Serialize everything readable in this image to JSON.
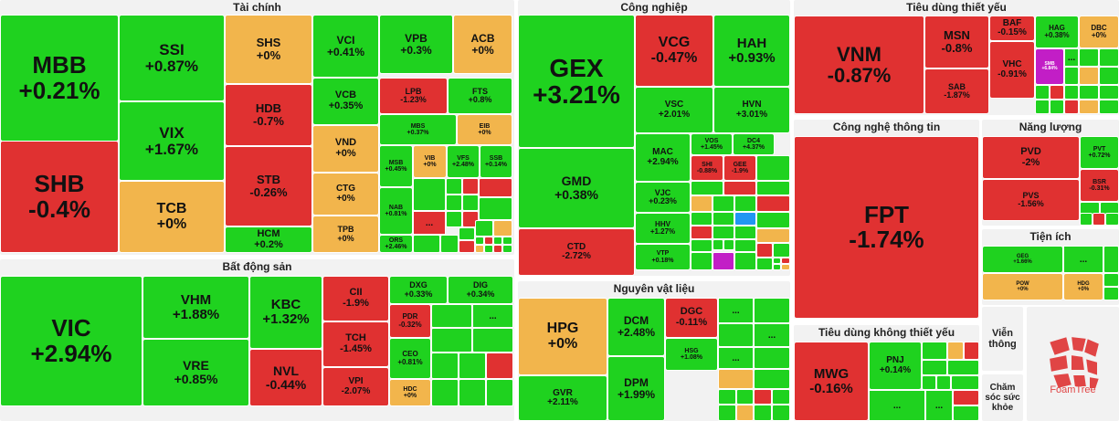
{
  "colors": {
    "up": "#1fd21f",
    "down": "#e03131",
    "flat": "#f2b54c",
    "purple": "#c21ec6",
    "blue": "#2196f3",
    "bg": "#f2f2f2"
  },
  "chart_data": {
    "type": "treemap",
    "sectors": [
      {
        "name": "Tài chính",
        "stocks": [
          {
            "s": "MBB",
            "v": "+0.21%",
            "d": 0.21
          },
          {
            "s": "SHB",
            "v": "-0.4%",
            "d": -0.4
          },
          {
            "s": "SSI",
            "v": "+0.87%",
            "d": 0.87
          },
          {
            "s": "VIX",
            "v": "+1.67%",
            "d": 1.67
          },
          {
            "s": "TCB",
            "v": "+0%",
            "d": 0
          },
          {
            "s": "SHS",
            "v": "+0%",
            "d": 0
          },
          {
            "s": "HDB",
            "v": "-0.7%",
            "d": -0.7
          },
          {
            "s": "STB",
            "v": "-0.26%",
            "d": -0.26
          },
          {
            "s": "HCM",
            "v": "+0.2%",
            "d": 0.2
          },
          {
            "s": "VCI",
            "v": "+0.41%",
            "d": 0.41
          },
          {
            "s": "VPB",
            "v": "+0.3%",
            "d": 0.3
          },
          {
            "s": "ACB",
            "v": "+0%",
            "d": 0
          },
          {
            "s": "VCB",
            "v": "+0.35%",
            "d": 0.35
          },
          {
            "s": "LPB",
            "v": "-1.23%",
            "d": -1.23
          },
          {
            "s": "FTS",
            "v": "+0.8%",
            "d": 0.8
          },
          {
            "s": "VND",
            "v": "+0%",
            "d": 0
          },
          {
            "s": "MBS",
            "v": "+0.37%",
            "d": 0.37
          },
          {
            "s": "EIB",
            "v": "+0%",
            "d": 0
          },
          {
            "s": "CTG",
            "v": "+0%",
            "d": 0
          },
          {
            "s": "TPB",
            "v": "+0%",
            "d": 0
          },
          {
            "s": "MSB",
            "v": "+0.45%",
            "d": 0.45
          },
          {
            "s": "VIB",
            "v": "+0%",
            "d": 0
          },
          {
            "s": "VFS",
            "v": "+2.48%",
            "d": 2.48
          },
          {
            "s": "SSB",
            "v": "+0.14%",
            "d": 0.14
          },
          {
            "s": "NAB",
            "v": "+0.81%",
            "d": 0.81
          },
          {
            "s": "ORS",
            "v": "+2.46%",
            "d": 2.46
          }
        ]
      },
      {
        "name": "Bất động sản",
        "stocks": [
          {
            "s": "VIC",
            "v": "+2.94%",
            "d": 2.94
          },
          {
            "s": "VHM",
            "v": "+1.88%",
            "d": 1.88
          },
          {
            "s": "VRE",
            "v": "+0.85%",
            "d": 0.85
          },
          {
            "s": "KBC",
            "v": "+1.32%",
            "d": 1.32
          },
          {
            "s": "NVL",
            "v": "-0.44%",
            "d": -0.44
          },
          {
            "s": "CII",
            "v": "-1.9%",
            "d": -1.9
          },
          {
            "s": "TCH",
            "v": "-1.45%",
            "d": -1.45
          },
          {
            "s": "VPI",
            "v": "-2.07%",
            "d": -2.07
          },
          {
            "s": "DXG",
            "v": "+0.33%",
            "d": 0.33
          },
          {
            "s": "DIG",
            "v": "+0.34%",
            "d": 0.34
          },
          {
            "s": "PDR",
            "v": "-0.32%",
            "d": -0.32
          },
          {
            "s": "CEO",
            "v": "+0.81%",
            "d": 0.81
          },
          {
            "s": "HDC",
            "v": "+0%",
            "d": 0
          }
        ]
      },
      {
        "name": "Công nghiệp",
        "stocks": [
          {
            "s": "GEX",
            "v": "+3.21%",
            "d": 3.21
          },
          {
            "s": "GMD",
            "v": "+0.38%",
            "d": 0.38
          },
          {
            "s": "CTD",
            "v": "-2.72%",
            "d": -2.72
          },
          {
            "s": "VCG",
            "v": "-0.47%",
            "d": -0.47
          },
          {
            "s": "HAH",
            "v": "+0.93%",
            "d": 0.93
          },
          {
            "s": "VSC",
            "v": "+2.01%",
            "d": 2.01
          },
          {
            "s": "HVN",
            "v": "+3.01%",
            "d": 3.01
          },
          {
            "s": "MAC",
            "v": "+2.94%",
            "d": 2.94
          },
          {
            "s": "VOS",
            "v": "+1.45%",
            "d": 1.45
          },
          {
            "s": "DC4",
            "v": "+4.37%",
            "d": 4.37
          },
          {
            "s": "SHI",
            "v": "-0.88%",
            "d": -0.88
          },
          {
            "s": "GEE",
            "v": "-1.9%",
            "d": -1.9
          },
          {
            "s": "VJC",
            "v": "+0.23%",
            "d": 0.23
          },
          {
            "s": "HHV",
            "v": "+1.27%",
            "d": 1.27
          },
          {
            "s": "VTP",
            "v": "+0.18%",
            "d": 0.18
          }
        ]
      },
      {
        "name": "Nguyên vật liệu",
        "stocks": [
          {
            "s": "HPG",
            "v": "+0%",
            "d": 0
          },
          {
            "s": "GVR",
            "v": "+2.11%",
            "d": 2.11
          },
          {
            "s": "DCM",
            "v": "+2.48%",
            "d": 2.48
          },
          {
            "s": "DPM",
            "v": "+1.99%",
            "d": 1.99
          },
          {
            "s": "DGC",
            "v": "-0.11%",
            "d": -0.11
          },
          {
            "s": "HSG",
            "v": "+1.08%",
            "d": 1.08
          }
        ]
      },
      {
        "name": "Tiêu dùng thiết yếu",
        "stocks": [
          {
            "s": "VNM",
            "v": "-0.87%",
            "d": -0.87
          },
          {
            "s": "MSN",
            "v": "-0.8%",
            "d": -0.8
          },
          {
            "s": "SAB",
            "v": "-1.87%",
            "d": -1.87
          },
          {
            "s": "BAF",
            "v": "-0.15%",
            "d": -0.15
          },
          {
            "s": "VHC",
            "v": "-0.91%",
            "d": -0.91
          },
          {
            "s": "HAG",
            "v": "+0.38%",
            "d": 0.38
          },
          {
            "s": "DBC",
            "v": "+0%",
            "d": 0
          },
          {
            "s": "SMB",
            "v": "+6.84%",
            "d": 6.84
          }
        ]
      },
      {
        "name": "Công nghệ thông tin",
        "stocks": [
          {
            "s": "FPT",
            "v": "-1.74%",
            "d": -1.74
          }
        ]
      },
      {
        "name": "Năng lượng",
        "stocks": [
          {
            "s": "PVD",
            "v": "-2%",
            "d": -2
          },
          {
            "s": "PVS",
            "v": "-1.56%",
            "d": -1.56
          },
          {
            "s": "PVT",
            "v": "+0.72%",
            "d": 0.72
          },
          {
            "s": "BSR",
            "v": "-0.31%",
            "d": -0.31
          }
        ]
      },
      {
        "name": "Tiện ích",
        "stocks": [
          {
            "s": "GEG",
            "v": "+1.66%",
            "d": 1.66
          },
          {
            "s": "POW",
            "v": "+0%",
            "d": 0
          },
          {
            "s": "HDG",
            "v": "+0%",
            "d": 0
          }
        ]
      },
      {
        "name": "Tiêu dùng không thiết yếu",
        "stocks": [
          {
            "s": "MWG",
            "v": "-0.16%",
            "d": -0.16
          },
          {
            "s": "PNJ",
            "v": "+0.14%",
            "d": 0.14
          }
        ]
      }
    ],
    "other_groups": [
      "Viễn thông",
      "Chăm sóc sức khỏe"
    ],
    "more_label": "...",
    "logo_text": "FoamTree"
  }
}
